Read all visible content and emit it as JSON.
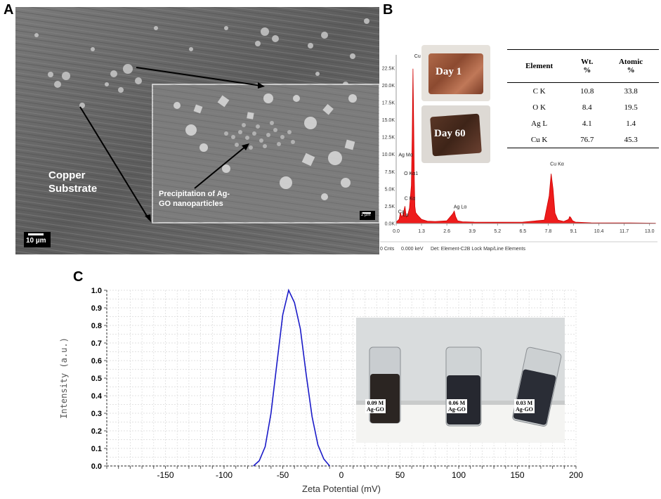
{
  "panels": {
    "a_label": "A",
    "b_label": "B",
    "c_label": "C"
  },
  "panel_a": {
    "substrate_label_line1": "Copper",
    "substrate_label_line2": "Substrate",
    "precipitation_label_line1": "Precipitation of Ag-",
    "precipitation_label_line2": "GO nanoparticles",
    "scale_main": "10 µm",
    "scale_inset": "2 µm"
  },
  "panel_b": {
    "photo_day1": "Day 1",
    "photo_day60": "Day 60",
    "footer_cnts": "0 Cnts",
    "footer_kev": "0.000 keV",
    "footer_det": "Det: Element-C2B Lock Map/Line Elements",
    "table": {
      "headers": [
        "Element",
        "Wt.\n%",
        "Atomic\n%"
      ],
      "rows": [
        [
          "C K",
          "10.8",
          "33.8"
        ],
        [
          "O K",
          "8.4",
          "19.5"
        ],
        [
          "Ag L",
          "4.1",
          "1.4"
        ],
        [
          "Cu K",
          "76.7",
          "45.3"
        ]
      ]
    }
  },
  "panel_c": {
    "vial_labels": [
      [
        "0.09 M",
        "Ag-GO"
      ],
      [
        "0.06 M",
        "Ag-GO"
      ],
      [
        "0.03 M",
        "Ag-GO"
      ]
    ]
  },
  "chart_data": [
    {
      "type": "area",
      "panel": "B",
      "x_ticks": [
        "0.0",
        "1.3",
        "2.6",
        "3.9",
        "5.2",
        "6.5",
        "7.8",
        "9.1",
        "10.4",
        "11.7",
        "13.0"
      ],
      "y_ticks": [
        "0.0K",
        "2.5K",
        "5.0K",
        "7.5K",
        "10.0K",
        "12.5K",
        "15.0K",
        "17.5K",
        "20.0K",
        "22.5K"
      ],
      "xlim": [
        0,
        13.3
      ],
      "ylim": [
        0,
        24
      ],
      "series": [
        {
          "x": [
            0.0,
            0.15,
            0.22,
            0.28,
            0.35,
            0.45,
            0.52,
            0.6,
            0.68,
            0.78,
            0.82,
            0.86,
            0.9,
            0.93,
            0.96,
            1.0,
            1.1,
            1.3,
            1.6,
            2.0,
            2.6,
            2.9,
            2.98,
            3.05,
            3.15,
            3.4,
            4.0,
            5.0,
            6.5,
            7.6,
            7.85,
            7.95,
            8.05,
            8.15,
            8.3,
            8.6,
            8.85,
            8.9,
            8.95,
            9.05,
            9.2,
            10.0,
            12.0,
            13.3
          ],
          "y": [
            0.2,
            0.6,
            1.6,
            0.9,
            1.3,
            2.5,
            0.9,
            1.3,
            2.2,
            5.5,
            12.5,
            22.4,
            14.0,
            6.5,
            2.5,
            1.6,
            1.2,
            0.6,
            0.35,
            0.3,
            0.4,
            1.4,
            1.8,
            1.0,
            0.4,
            0.25,
            0.2,
            0.18,
            0.2,
            0.5,
            4.0,
            7.2,
            5.0,
            1.5,
            0.5,
            0.3,
            0.6,
            1.0,
            0.9,
            0.4,
            0.2,
            0.1,
            0.08,
            0.05
          ]
        }
      ],
      "peak_labels": [
        {
          "text": "Cu Lα",
          "x": 0.93,
          "y": 24.0
        },
        {
          "text": "Ag Mα",
          "x": 0.12,
          "y": 9.7
        },
        {
          "text": "O Kα1",
          "x": 0.4,
          "y": 7.0
        },
        {
          "text": "C Kα",
          "x": 0.42,
          "y": 3.4
        },
        {
          "text": "Ca",
          "x": 0.1,
          "y": 1.5
        },
        {
          "text": "Lα",
          "x": 0.35,
          "y": 1.0
        },
        {
          "text": "Ag Lα",
          "x": 2.95,
          "y": 2.2
        },
        {
          "text": "Cu Kα",
          "x": 7.9,
          "y": 8.4
        }
      ]
    },
    {
      "type": "line",
      "panel": "C",
      "xlabel": "Zeta Potential (mV)",
      "ylabel": "Intensity (a.u.)",
      "xlim": [
        -200,
        200
      ],
      "ylim": [
        0,
        1.0
      ],
      "x_ticks": [
        -150,
        -100,
        -50,
        0,
        50,
        100,
        150,
        200
      ],
      "y_ticks": [
        "0.0",
        "0.1",
        "0.2",
        "0.3",
        "0.4",
        "0.5",
        "0.6",
        "0.7",
        "0.8",
        "0.9",
        "1.0"
      ],
      "grid": true,
      "color": "#1a1ac8",
      "series": [
        {
          "x": [
            -75,
            -70,
            -65,
            -60,
            -55,
            -50,
            -45,
            -40,
            -35,
            -30,
            -25,
            -20,
            -15,
            -10
          ],
          "y": [
            0.0,
            0.03,
            0.11,
            0.3,
            0.58,
            0.86,
            1.0,
            0.93,
            0.78,
            0.52,
            0.28,
            0.12,
            0.04,
            0.0
          ]
        }
      ]
    }
  ]
}
